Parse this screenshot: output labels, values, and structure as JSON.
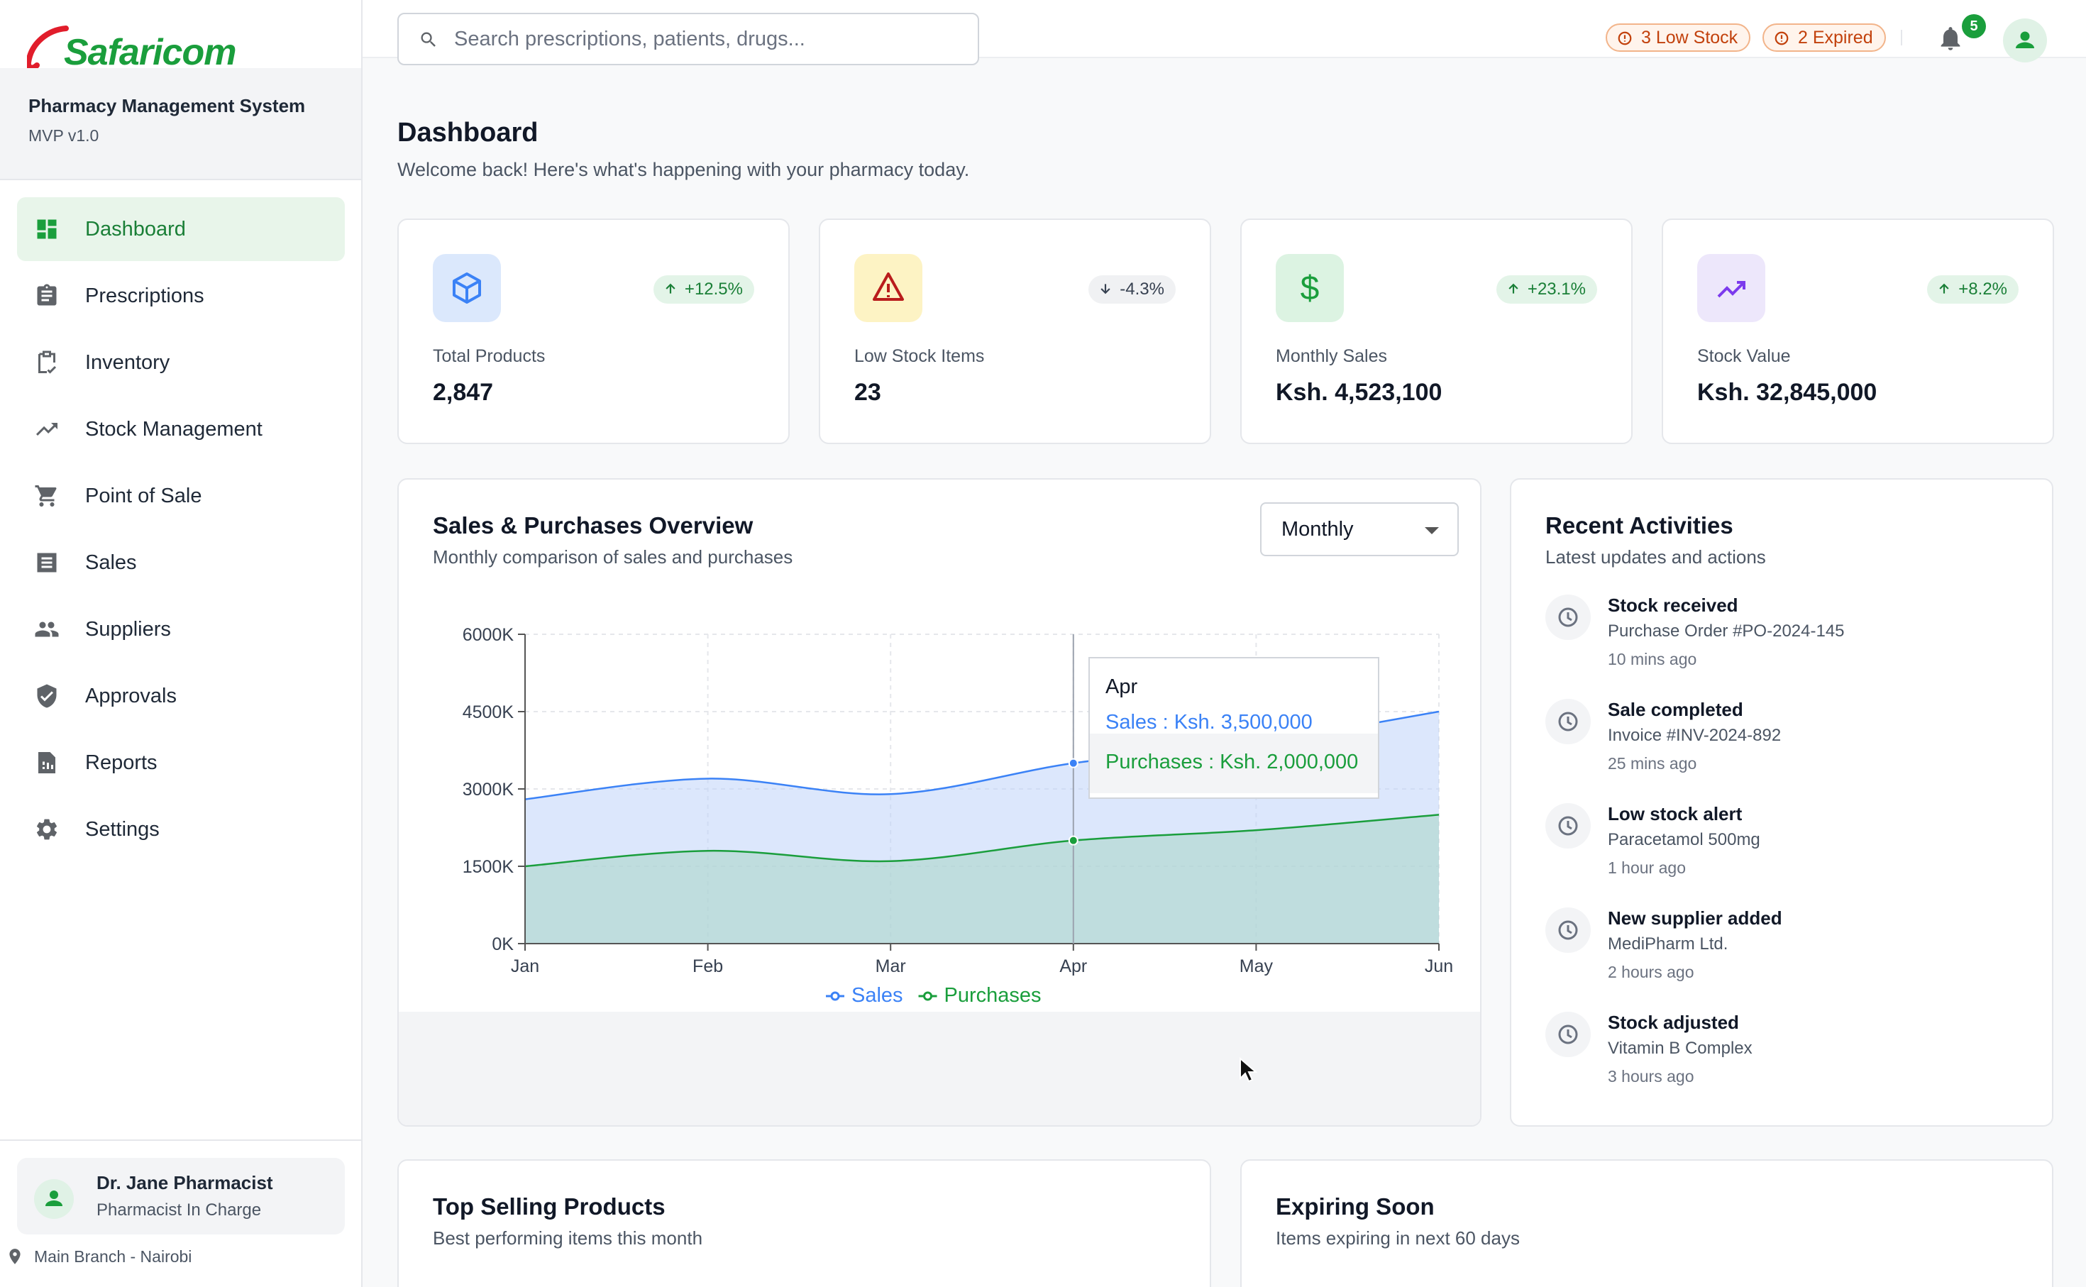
{
  "brand": {
    "name": "Safaricom",
    "system": "Pharmacy Management System",
    "version": "MVP v1.0"
  },
  "nav": [
    {
      "label": "Dashboard",
      "icon": "dashboard-icon",
      "active": true
    },
    {
      "label": "Prescriptions",
      "icon": "clipboard-icon"
    },
    {
      "label": "Inventory",
      "icon": "inventory-icon"
    },
    {
      "label": "Stock Management",
      "icon": "trending-up-icon"
    },
    {
      "label": "Point of Sale",
      "icon": "cart-icon"
    },
    {
      "label": "Sales",
      "icon": "receipt-icon"
    },
    {
      "label": "Suppliers",
      "icon": "people-icon"
    },
    {
      "label": "Approvals",
      "icon": "shield-check-icon"
    },
    {
      "label": "Reports",
      "icon": "report-icon"
    },
    {
      "label": "Settings",
      "icon": "gear-icon"
    }
  ],
  "user": {
    "name": "Dr. Jane Pharmacist",
    "role": "Pharmacist In Charge",
    "branch": "Main Branch - Nairobi"
  },
  "topbar": {
    "search_placeholder": "Search prescriptions, patients, drugs...",
    "low_stock": "3 Low Stock",
    "expired": "2 Expired",
    "notifications": "5"
  },
  "page": {
    "title": "Dashboard",
    "subtitle": "Welcome back! Here's what's happening with your pharmacy today."
  },
  "stats": [
    {
      "label": "Total Products",
      "value": "2,847",
      "change": "+12.5%",
      "trend": "up",
      "icon": "box-icon",
      "color": "#3b82f6"
    },
    {
      "label": "Low Stock Items",
      "value": "23",
      "change": "-4.3%",
      "trend": "down",
      "icon": "warning-icon",
      "color": "#dc2626"
    },
    {
      "label": "Monthly Sales",
      "value": "Ksh. 4,523,100",
      "change": "+23.1%",
      "trend": "up",
      "icon": "dollar-icon",
      "color": "#1a9e3c"
    },
    {
      "label": "Stock Value",
      "value": "Ksh. 32,845,000",
      "change": "+8.2%",
      "trend": "up",
      "icon": "trending-up-icon",
      "color": "#7c3aed"
    }
  ],
  "overview": {
    "title": "Sales & Purchases Overview",
    "subtitle": "Monthly comparison of sales and purchases",
    "period": "Monthly",
    "tooltip": {
      "month": "Apr",
      "sales": "Sales : Ksh. 3,500,000",
      "purchases": "Purchases : Ksh. 2,000,000"
    }
  },
  "chart_data": {
    "type": "area",
    "categories": [
      "Jan",
      "Feb",
      "Mar",
      "Apr",
      "May",
      "Jun"
    ],
    "series": [
      {
        "name": "Sales",
        "values": [
          2800,
          3200,
          2900,
          3500,
          3900,
          4500
        ],
        "color": "#3b82f6"
      },
      {
        "name": "Purchases",
        "values": [
          1500,
          1800,
          1600,
          2000,
          2200,
          2500
        ],
        "color": "#1a9e3c"
      }
    ],
    "yticks": [
      "0K",
      "1500K",
      "3000K",
      "4500K",
      "6000K"
    ],
    "ylim": [
      0,
      6000
    ],
    "grid": true,
    "legend": "bottom"
  },
  "activities": {
    "title": "Recent Activities",
    "subtitle": "Latest updates and actions",
    "items": [
      {
        "title": "Stock received",
        "detail": "Purchase Order #PO-2024-145",
        "time": "10 mins ago"
      },
      {
        "title": "Sale completed",
        "detail": "Invoice #INV-2024-892",
        "time": "25 mins ago"
      },
      {
        "title": "Low stock alert",
        "detail": "Paracetamol 500mg",
        "time": "1 hour ago"
      },
      {
        "title": "New supplier added",
        "detail": "MediPharm Ltd.",
        "time": "2 hours ago"
      },
      {
        "title": "Stock adjusted",
        "detail": "Vitamin B Complex",
        "time": "3 hours ago"
      }
    ]
  },
  "top_selling": {
    "title": "Top Selling Products",
    "subtitle": "Best performing items this month"
  },
  "expiring": {
    "title": "Expiring Soon",
    "subtitle": "Items expiring in next 60 days"
  }
}
